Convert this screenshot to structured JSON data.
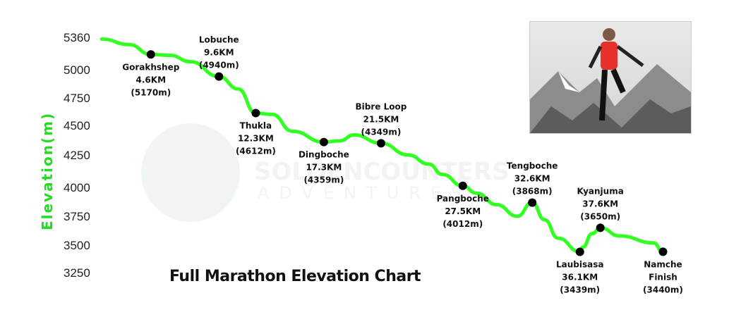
{
  "chart_data": {
    "type": "line",
    "title": "Full Marathon Elevation Chart",
    "ylabel": "Elevation(m)",
    "xlabel": "",
    "ylim": [
      3250,
      5360
    ],
    "yticks": [
      "5360",
      "5000",
      "4750",
      "4500",
      "4250",
      "4000",
      "3750",
      "3500",
      "3250"
    ],
    "ytick_values": [
      5360,
      5000,
      4750,
      4500,
      4250,
      4000,
      3750,
      3500,
      3250
    ],
    "line_color": "#33ff22",
    "profile": [
      [
        1,
        5340
      ],
      [
        3,
        5280
      ],
      [
        4.6,
        5170
      ],
      [
        6,
        5160
      ],
      [
        7.5,
        5090
      ],
      [
        9.6,
        4940
      ],
      [
        11,
        4830
      ],
      [
        12.3,
        4612
      ],
      [
        13.5,
        4600
      ],
      [
        15,
        4450
      ],
      [
        17.3,
        4359
      ],
      [
        18.5,
        4370
      ],
      [
        19.5,
        4420
      ],
      [
        21.5,
        4349
      ],
      [
        23.5,
        4250
      ],
      [
        25,
        4180
      ],
      [
        26,
        4100
      ],
      [
        27.5,
        4012
      ],
      [
        28.5,
        3950
      ],
      [
        30,
        3850
      ],
      [
        31.5,
        3750
      ],
      [
        32.6,
        3868
      ],
      [
        33.5,
        3720
      ],
      [
        34.5,
        3560
      ],
      [
        36.1,
        3439
      ],
      [
        36.3,
        3480
      ],
      [
        37,
        3600
      ],
      [
        37.6,
        3650
      ],
      [
        39,
        3580
      ],
      [
        41.5,
        3520
      ],
      [
        42.2,
        3440
      ]
    ],
    "stations": [
      {
        "name": "Gorakhshep",
        "km": 4.6,
        "dist": "4.6KM",
        "elev": 5170,
        "elev_label": "(5170m)",
        "pos": "below"
      },
      {
        "name": "Lobuche",
        "km": 9.6,
        "dist": "9.6KM",
        "elev": 4940,
        "elev_label": "(4940m)",
        "pos": "above"
      },
      {
        "name": "Thukla",
        "km": 12.3,
        "dist": "12.3KM",
        "elev": 4612,
        "elev_label": "(4612m)",
        "pos": "below"
      },
      {
        "name": "Dingboche",
        "km": 17.3,
        "dist": "17.3KM",
        "elev": 4359,
        "elev_label": "(4359m)",
        "pos": "below"
      },
      {
        "name": "Bibre Loop",
        "km": 21.5,
        "dist": "21.5KM",
        "elev": 4349,
        "elev_label": "(4349m)",
        "pos": "above"
      },
      {
        "name": "Pangboche",
        "km": 27.5,
        "dist": "27.5KM",
        "elev": 4012,
        "elev_label": "(4012m)",
        "pos": "below"
      },
      {
        "name": "Tengboche",
        "km": 32.6,
        "dist": "32.6KM",
        "elev": 3868,
        "elev_label": "(3868m)",
        "pos": "above"
      },
      {
        "name": "Laubisasa",
        "km": 36.1,
        "dist": "36.1KM",
        "elev": 3439,
        "elev_label": "(3439m)",
        "pos": "below"
      },
      {
        "name": "Kyanjuma",
        "km": 37.6,
        "dist": "37.6KM",
        "elev": 3650,
        "elev_label": "(3650m)",
        "pos": "above"
      },
      {
        "name": "Namche",
        "km": 42.2,
        "dist": "Finish",
        "elev": 3440,
        "elev_label": "(3440m)",
        "pos": "below"
      }
    ]
  },
  "watermark": {
    "line1": "SOLOENCOUNTERS",
    "line2": "ADVENTURES"
  }
}
